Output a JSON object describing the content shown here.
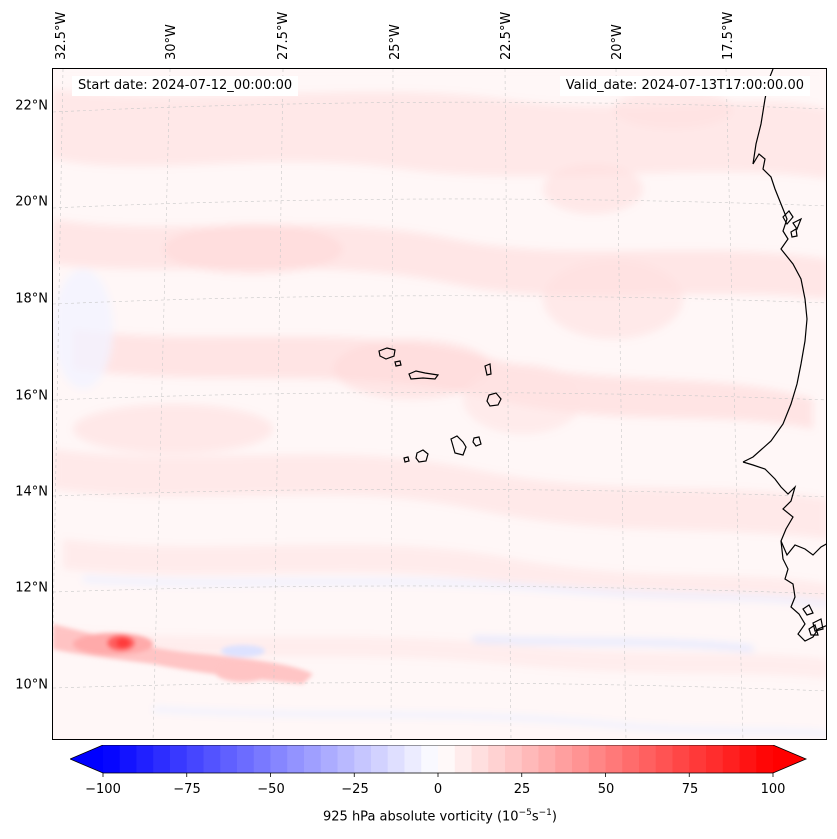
{
  "map": {
    "start_date_label": "Start date: 2024-07-12_00:00:00",
    "valid_date_label": "Valid_date: 2024-07-13T17:00:00.00",
    "longitude_labels": [
      "32.5°W",
      "30°W",
      "27.5°W",
      "25°W",
      "22.5°W",
      "20°W",
      "17.5°W"
    ],
    "latitude_labels": [
      "22°N",
      "20°N",
      "18°N",
      "16°N",
      "14°N",
      "12°N",
      "10°N"
    ],
    "field": "925 hPa absolute vorticity",
    "colormap": "bwr",
    "colors": {
      "negative": "#0000ff",
      "zero": "#ffffff",
      "positive": "#ff0000",
      "coastline": "#000000"
    }
  },
  "colorbar": {
    "title_text": "925 hPa absolute vorticity (",
    "title_unit_base": "10",
    "title_unit_exp1": "−5",
    "title_unit_s": "s",
    "title_unit_exp2": "−1",
    "title_close": ")",
    "min": -100,
    "max": 100,
    "ticks": [
      -100,
      -75,
      -50,
      -25,
      0,
      25,
      50,
      75,
      100
    ],
    "tick_labels": [
      "−100",
      "−75",
      "−50",
      "−25",
      "0",
      "25",
      "50",
      "75",
      "100"
    ],
    "extend": "both"
  }
}
